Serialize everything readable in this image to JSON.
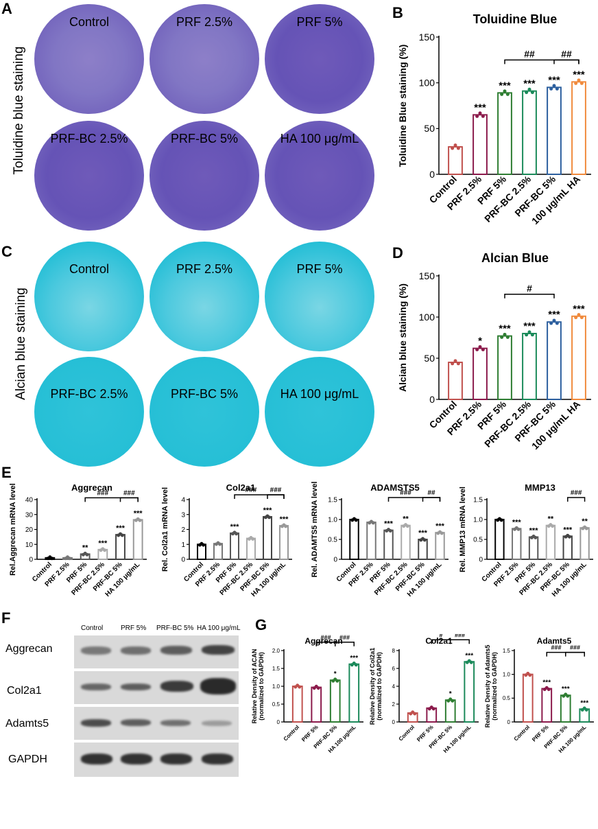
{
  "panels": {
    "A": "A",
    "B": "B",
    "C": "C",
    "D": "D",
    "E": "E",
    "F": "F",
    "G": "G"
  },
  "panel_a": {
    "side_label": "Toluidine blue staining",
    "dishes": [
      "Control",
      "PRF 2.5%",
      "PRF 5%",
      "PRF-BC 2.5%",
      "PRF-BC 5%",
      "HA 100 μg/mL"
    ]
  },
  "panel_c": {
    "side_label": "Alcian blue staining",
    "dishes": [
      "Control",
      "PRF 2.5%",
      "PRF 5%",
      "PRF-BC 2.5%",
      "PRF-BC 5%",
      "HA 100 μg/mL"
    ]
  },
  "panel_f": {
    "columns": [
      "Control",
      "PRF 5%",
      "PRF-BC 5%",
      "HA 100 μg/mL"
    ],
    "rows": [
      "Aggrecan",
      "Col2a1",
      "Adamts5",
      "GAPDH"
    ]
  },
  "chart_data": [
    {
      "id": "B",
      "type": "bar",
      "title": "Toluidine Blue",
      "ylabel": "Toluidine Blue staining (%)",
      "categories": [
        "Control",
        "PRF 2.5%",
        "PRF 5%",
        "PRF-BC 2.5%",
        "PRF-BC 5%",
        "100 μg/mL HA"
      ],
      "values": [
        30,
        65,
        89,
        91,
        95,
        101
      ],
      "ylim": [
        0,
        150
      ],
      "yticks": [
        0,
        50,
        100,
        150
      ],
      "colors": [
        "#c0504d",
        "#8b1a4b",
        "#2e7d32",
        "#1b8a5a",
        "#2c5f9e",
        "#f08a3c"
      ],
      "sig": [
        "",
        "***",
        "***",
        "***",
        "***",
        "***"
      ],
      "brackets": [
        {
          "from": 2,
          "to": 5,
          "label": "##"
        },
        {
          "from": 4,
          "to": 5,
          "label": "##"
        }
      ]
    },
    {
      "id": "D",
      "type": "bar",
      "title": "Alcian Blue",
      "ylabel": "Alcian blue staining (%)",
      "categories": [
        "Control",
        "PRF 2.5%",
        "PRF 5%",
        "PRF-BC 2.5%",
        "PRF-BC 5%",
        "100 μg/mL HA"
      ],
      "values": [
        45,
        62,
        77,
        80,
        94,
        101
      ],
      "ylim": [
        0,
        150
      ],
      "yticks": [
        0,
        50,
        100,
        150
      ],
      "colors": [
        "#c0504d",
        "#8b1a4b",
        "#2e7d32",
        "#1b8a5a",
        "#2c5f9e",
        "#f08a3c"
      ],
      "sig": [
        "",
        "*",
        "***",
        "***",
        "***",
        "***"
      ],
      "brackets": [
        {
          "from": 2,
          "to": 4,
          "label": "#"
        }
      ]
    },
    {
      "id": "E1",
      "type": "bar",
      "title": "Aggrecan",
      "ylabel": "Rel.Aggrecan mRNA level",
      "categories": [
        "Control",
        "PRF 2.5%",
        "PRF 5%",
        "PRF-BC 2.5%",
        "PRF-BC 5%",
        "HA 100 μg/mL"
      ],
      "values": [
        1,
        1,
        3.5,
        6.5,
        16.5,
        26.5
      ],
      "ylim": [
        0,
        40
      ],
      "yticks": [
        0,
        10,
        20,
        30,
        40
      ],
      "colors": [
        "#000000",
        "#777777",
        "#555555",
        "#aaaaaa",
        "#444444",
        "#999999"
      ],
      "sig": [
        "",
        "",
        "**",
        "***",
        "***",
        "***"
      ],
      "brackets": [
        {
          "from": 2,
          "to": 5,
          "label": "###"
        },
        {
          "from": 4,
          "to": 5,
          "label": "###"
        }
      ]
    },
    {
      "id": "E2",
      "type": "bar",
      "title": "Col2a1",
      "ylabel": "Rel. Col2a1 mRNA level",
      "categories": [
        "Control",
        "PRF 2.5%",
        "PRF 5%",
        "PRF-BC 2.5%",
        "PRF-BC 5%",
        "HA 100 μg/mL"
      ],
      "values": [
        1,
        1.05,
        1.75,
        1.4,
        2.85,
        2.25
      ],
      "ylim": [
        0,
        4
      ],
      "yticks": [
        0,
        1,
        2,
        3,
        4
      ],
      "colors": [
        "#000000",
        "#777777",
        "#555555",
        "#aaaaaa",
        "#444444",
        "#999999"
      ],
      "sig": [
        "",
        "",
        "***",
        "",
        "***",
        "***"
      ],
      "brackets": [
        {
          "from": 2,
          "to": 5,
          "label": "###"
        },
        {
          "from": 4,
          "to": 5,
          "label": "###"
        }
      ]
    },
    {
      "id": "E3",
      "type": "bar",
      "title": "ADAMSTS5",
      "ylabel": "Rel. ADAMTS5 mRNA level",
      "categories": [
        "Control",
        "PRF 2.5%",
        "PRF 5%",
        "PRF-BC 2.5%",
        "PRF-BC 5%",
        "HA 100 μg/mL"
      ],
      "values": [
        1,
        0.93,
        0.73,
        0.85,
        0.5,
        0.67
      ],
      "ylim": [
        0,
        1.5
      ],
      "yticks": [
        0,
        0.5,
        1.0,
        1.5
      ],
      "colors": [
        "#000000",
        "#777777",
        "#555555",
        "#aaaaaa",
        "#444444",
        "#999999"
      ],
      "sig": [
        "",
        "",
        "***",
        "**",
        "***",
        "***"
      ],
      "brackets": [
        {
          "from": 2,
          "to": 5,
          "label": "###"
        },
        {
          "from": 4,
          "to": 5,
          "label": "##"
        }
      ]
    },
    {
      "id": "E4",
      "type": "bar",
      "title": "MMP13",
      "ylabel": "Rel. MMP13 mRNA level",
      "categories": [
        "Control",
        "PRF 2.5%",
        "PRF 5%",
        "PRF-BC 2.5%",
        "PRF-BC 5%",
        "HA 100 μg/mL"
      ],
      "values": [
        1,
        0.77,
        0.56,
        0.85,
        0.58,
        0.79
      ],
      "ylim": [
        0,
        1.5
      ],
      "yticks": [
        0,
        0.5,
        1.0,
        1.5
      ],
      "colors": [
        "#000000",
        "#777777",
        "#555555",
        "#aaaaaa",
        "#444444",
        "#999999"
      ],
      "sig": [
        "",
        "***",
        "***",
        "**",
        "***",
        "**"
      ],
      "brackets": [
        {
          "from": 4,
          "to": 5,
          "label": "###"
        }
      ]
    },
    {
      "id": "G1",
      "type": "bar",
      "title": "Aggrecan",
      "ylabel": "Relative Density of ACAN",
      "ylabel2": "(normalized to GAPDH)",
      "categories": [
        "Control",
        "PRF 5%",
        "PRF-BC 5%",
        "HA 100 μg/mL"
      ],
      "values": [
        1,
        0.97,
        1.17,
        1.62
      ],
      "ylim": [
        0,
        2
      ],
      "yticks": [
        0,
        0.5,
        1.0,
        1.5,
        2.0
      ],
      "colors": [
        "#c0504d",
        "#8b1a4b",
        "#2e7d32",
        "#1b8a5a"
      ],
      "sig": [
        "",
        "",
        "*",
        "***"
      ],
      "brackets": [
        {
          "from": 1,
          "to": 2,
          "label": "###"
        },
        {
          "from": 2,
          "to": 3,
          "label": "###"
        }
      ]
    },
    {
      "id": "G2",
      "type": "bar",
      "title": "Col2a1",
      "ylabel": "Relative Density of Col2a1",
      "ylabel2": "(normalized to GAPDH)",
      "categories": [
        "Control",
        "PRF 5%",
        "PRF-BC 5%",
        "HA 100 μg/mL"
      ],
      "values": [
        1,
        1.55,
        2.45,
        6.75
      ],
      "ylim": [
        0,
        8
      ],
      "yticks": [
        0,
        2,
        4,
        6,
        8
      ],
      "colors": [
        "#c0504d",
        "#8b1a4b",
        "#2e7d32",
        "#1b8a5a"
      ],
      "sig": [
        "",
        "",
        "*",
        "***"
      ],
      "brackets": [
        {
          "from": 1,
          "to": 2,
          "label": "#"
        },
        {
          "from": 2,
          "to": 3,
          "label": "###"
        }
      ]
    },
    {
      "id": "G3",
      "type": "bar",
      "title": "Adamts5",
      "ylabel": "Relative Density of Adamts5",
      "ylabel2": "(normalized to GAPDH)",
      "categories": [
        "Control",
        "PRF 5%",
        "PRF-BC 5%",
        "HA 100 μg/mL"
      ],
      "values": [
        1,
        0.7,
        0.56,
        0.27
      ],
      "ylim": [
        0,
        1.5
      ],
      "yticks": [
        0,
        0.5,
        1.0,
        1.5
      ],
      "colors": [
        "#c0504d",
        "#8b1a4b",
        "#2e7d32",
        "#1b8a5a"
      ],
      "sig": [
        "",
        "***",
        "***",
        "***"
      ],
      "brackets": [
        {
          "from": 1,
          "to": 3,
          "label": "###"
        },
        {
          "from": 2,
          "to": 3,
          "label": "###"
        }
      ]
    }
  ]
}
